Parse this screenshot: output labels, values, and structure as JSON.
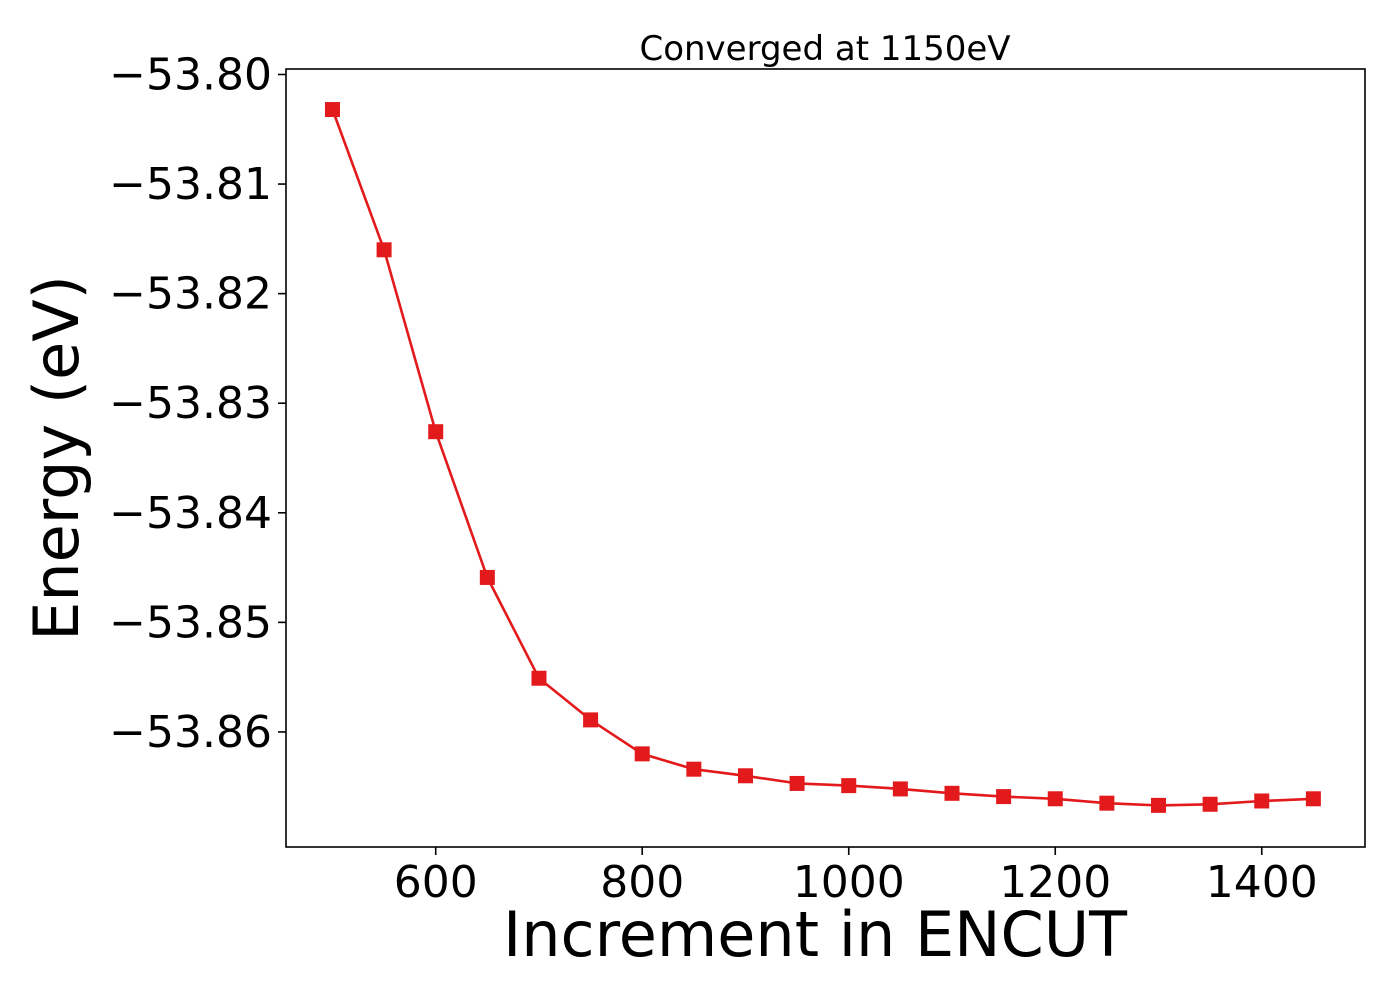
{
  "chart_data": {
    "type": "line",
    "title": "Converged at 1150eV",
    "xlabel": "Increment in ENCUT",
    "ylabel": "Energy (eV)",
    "xlim": [
      455,
      1500
    ],
    "ylim": [
      -53.8705,
      -53.7995
    ],
    "xticks": [
      600,
      800,
      1000,
      1200,
      1400
    ],
    "xtick_labels": [
      "600",
      "800",
      "1000",
      "1200",
      "1400"
    ],
    "yticks": [
      -53.8,
      -53.81,
      -53.82,
      -53.83,
      -53.84,
      -53.85,
      -53.86
    ],
    "ytick_labels": [
      "−53.80",
      "−53.81",
      "−53.82",
      "−53.83",
      "−53.84",
      "−53.85",
      "−53.86"
    ],
    "grid": false,
    "series": [
      {
        "color": "#e31a1c",
        "marker": "square",
        "x": [
          500,
          550,
          600,
          650,
          700,
          750,
          800,
          850,
          900,
          950,
          1000,
          1050,
          1100,
          1150,
          1200,
          1250,
          1300,
          1350,
          1400,
          1450
        ],
        "y": [
          -53.8032,
          -53.816,
          -53.8326,
          -53.8459,
          -53.8551,
          -53.8589,
          -53.862,
          -53.8634,
          -53.864,
          -53.8647,
          -53.8649,
          -53.8652,
          -53.8656,
          -53.8659,
          -53.8661,
          -53.8665,
          -53.8667,
          -53.8666,
          -53.8663,
          -53.8661
        ]
      }
    ]
  }
}
